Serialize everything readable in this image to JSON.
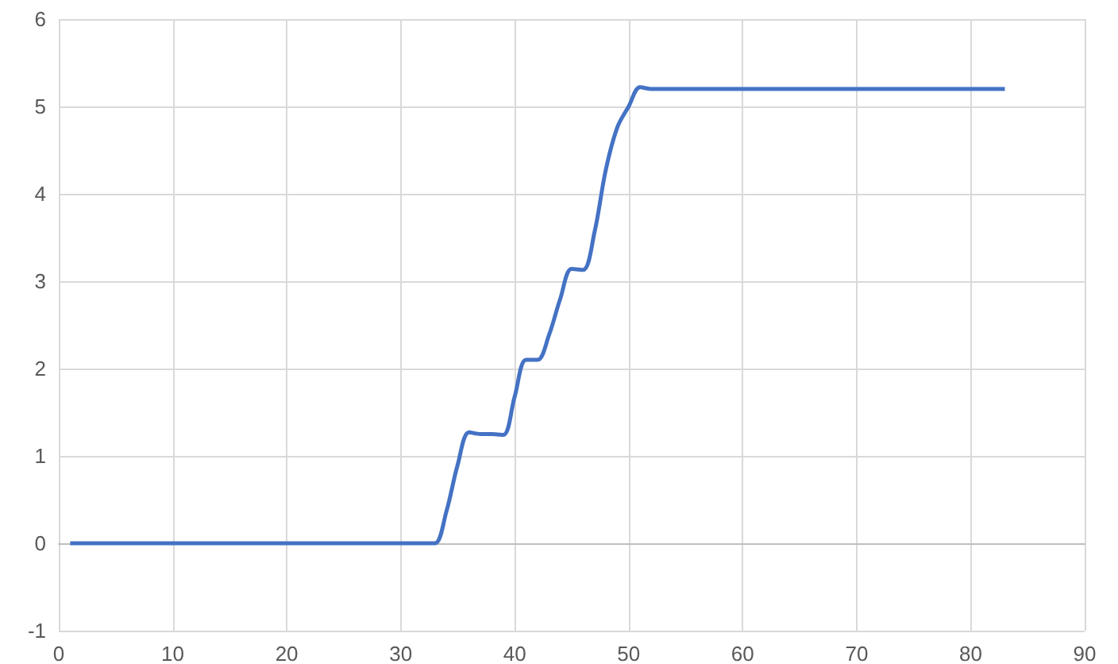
{
  "chart_data": {
    "type": "line",
    "x": [
      1,
      32,
      33,
      34,
      35,
      36,
      37,
      38,
      39,
      40,
      41,
      42,
      43,
      44,
      45,
      46,
      47,
      48,
      49,
      50,
      51,
      52,
      83
    ],
    "series": [
      {
        "color": "#4472c4",
        "values": [
          0,
          0,
          0,
          0.36,
          0.9,
          1.27,
          1.25,
          1.25,
          1.24,
          1.68,
          2.1,
          2.1,
          2.38,
          2.8,
          3.14,
          3.13,
          3.56,
          4.28,
          4.76,
          5.0,
          5.22,
          5.2,
          5.2
        ]
      }
    ],
    "xlim": [
      0,
      90
    ],
    "xticks": [
      0,
      10,
      20,
      30,
      40,
      50,
      60,
      70,
      80,
      90
    ],
    "ylim": [
      -1,
      6
    ],
    "yticks": [
      -1,
      0,
      1,
      2,
      3,
      4,
      5,
      6
    ],
    "grid": true,
    "marker": "none",
    "line_style": "solid"
  }
}
